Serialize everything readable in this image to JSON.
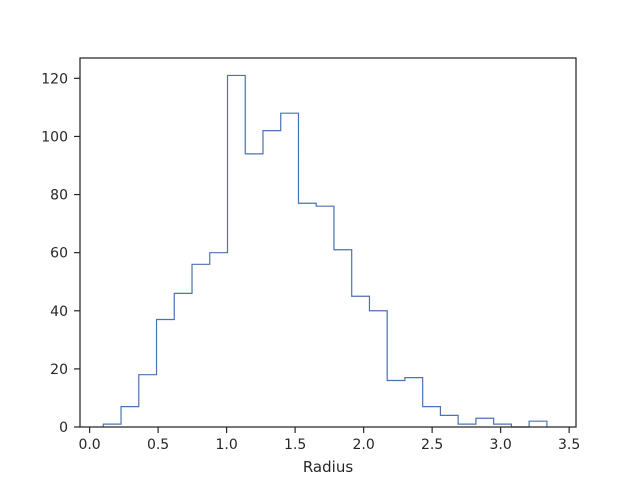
{
  "chart_data": {
    "type": "histogram",
    "style": "step",
    "xlabel": "Radius",
    "ylabel": "",
    "title": "",
    "xlim": [
      -0.07,
      3.55
    ],
    "ylim": [
      0,
      127
    ],
    "xticks": [
      0.0,
      0.5,
      1.0,
      1.5,
      2.0,
      2.5,
      3.0,
      3.5
    ],
    "xtick_labels": [
      "0.0",
      "0.5",
      "1.0",
      "1.5",
      "2.0",
      "2.5",
      "3.0",
      "3.5"
    ],
    "yticks": [
      0,
      20,
      40,
      60,
      80,
      100,
      120
    ],
    "ytick_labels": [
      "0",
      "20",
      "40",
      "60",
      "80",
      "100",
      "120"
    ],
    "grid": false,
    "line_color": "#4c72b0",
    "bins": {
      "start": 0.1,
      "width": 0.1295,
      "count": 25
    },
    "counts": [
      1,
      7,
      18,
      37,
      46,
      56,
      60,
      121,
      94,
      102,
      108,
      77,
      76,
      61,
      45,
      40,
      16,
      17,
      7,
      4,
      1,
      3,
      1,
      0,
      2
    ]
  }
}
